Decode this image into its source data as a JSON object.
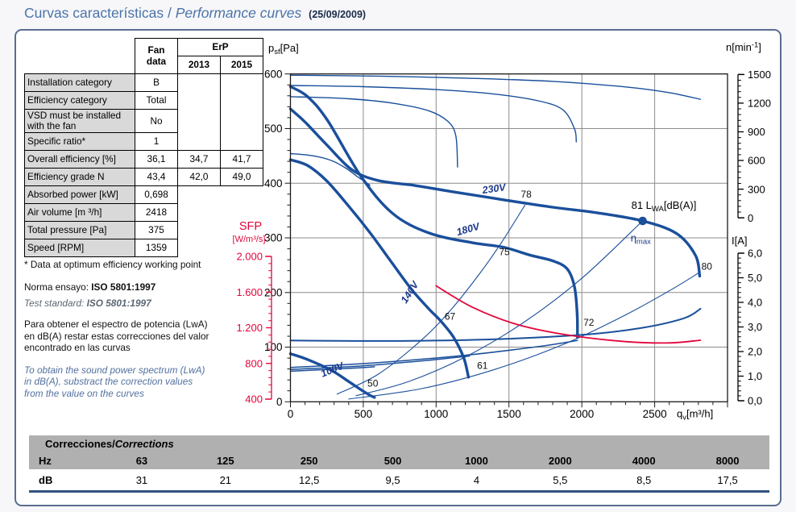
{
  "title": {
    "es": "Curvas características",
    "sep": " / ",
    "en": "Performance curves",
    "date": "(25/09/2009)"
  },
  "fan_table": {
    "headers": {
      "fan_data": "Fan data",
      "erp": "ErP",
      "y2013": "2013",
      "y2015": "2015"
    },
    "rows": [
      {
        "label": "Installation category",
        "fan": "B"
      },
      {
        "label": "Efficiency category",
        "fan": "Total"
      },
      {
        "label": "VSD must be installed with the fan",
        "fan": "No"
      },
      {
        "label": "Specific ratio*",
        "fan": "1"
      },
      {
        "label": "Overall efficiency [%]",
        "fan": "36,1",
        "y2013": "34,7",
        "y2015": "41,7"
      },
      {
        "label": "Efficiency grade N",
        "fan": "43,4",
        "y2013": "42,0",
        "y2015": "49,0"
      },
      {
        "label": "Absorbed power [kW]",
        "fan": "0,698"
      },
      {
        "label": "Air volume [m ³/h]",
        "fan": "2418"
      },
      {
        "label": "Total pressure [Pa]",
        "fan": "375"
      },
      {
        "label": "Speed [RPM]",
        "fan": "1359"
      }
    ]
  },
  "notes": {
    "star": "* Data at optimum efficiency working point",
    "norma_label": "Norma ensayo: ",
    "norma_value": "ISO 5801:1997",
    "test_label": "Test standard: ",
    "test_value": "ISO 5801:1997",
    "para_es": "Para obtener el espectro de potencia (LwA) en dB(A) restar estas correcciones del valor encontrado en las curvas",
    "para_en": "To obtain the sound power spectrum (LwA) in dB(A), substract the correction values from the value on the curves"
  },
  "corrections": {
    "title_es": "Correcciones",
    "sep": " / ",
    "title_en": "Corrections",
    "row_hz": "Hz",
    "row_db": "dB",
    "hz": [
      "63",
      "125",
      "250",
      "500",
      "1000",
      "2000",
      "4000",
      "8000"
    ],
    "db": [
      "31",
      "21",
      "12,5",
      "9,5",
      "4",
      "5,5",
      "8,5",
      "17,5"
    ]
  },
  "chart_data": {
    "type": "line",
    "x_axis": {
      "min": 0,
      "max": 3000,
      "majors": [
        0,
        500,
        1000,
        1500,
        2000,
        2500
      ],
      "labels": [
        "0",
        "500",
        "1000",
        "1500",
        "2000",
        "2500"
      ],
      "minor_step": 100,
      "title_parts": [
        {
          "t": "q"
        },
        {
          "t": "v",
          "sub": true
        },
        {
          "t": "[m³/h]"
        }
      ]
    },
    "psf_axis": {
      "min": 0,
      "max": 600,
      "majors": [
        0,
        100,
        200,
        300,
        400,
        500,
        600
      ],
      "labels": [
        "0",
        "100",
        "200",
        "300",
        "400",
        "500",
        "600"
      ],
      "minor_step": 20,
      "title_parts": [
        {
          "t": "p"
        },
        {
          "t": "sf",
          "sub": true
        },
        {
          "t": "[Pa]"
        }
      ]
    },
    "n_axis": {
      "min": 0,
      "max": 1500,
      "majors": [
        0,
        300,
        600,
        900,
        1200,
        1500
      ],
      "labels": [
        "0",
        "300",
        "600",
        "900",
        "1200",
        "1500"
      ],
      "minor_step": 60,
      "pa_min": 336.7,
      "pa_max": 599,
      "title_parts": [
        {
          "t": "n"
        },
        {
          "t": "[min"
        },
        {
          "t": "-1",
          "sup": true
        },
        {
          "t": "]"
        }
      ]
    },
    "i_axis": {
      "min": 0,
      "max": 6,
      "majors": [
        0,
        1,
        2,
        3,
        4,
        5,
        6
      ],
      "labels": [
        "0,0",
        "1,0",
        "2,0",
        "3,0",
        "4,0",
        "5,0",
        "6,0"
      ],
      "minor_step": 0.2,
      "pa_min": 1.9,
      "pa_max": 272,
      "title_parts": [
        {
          "t": "I[A]"
        }
      ]
    },
    "sfp_axis": {
      "min": 400,
      "max": 2000,
      "majors": [
        400,
        800,
        1200,
        1600,
        2000
      ],
      "labels": [
        "400",
        "800",
        "1.200",
        "1.600",
        "2.000"
      ],
      "minor_step": 80,
      "pa_min": 4.9,
      "pa_max": 266,
      "title": "SFP",
      "unit": "[W/m³/s]"
    },
    "series": [
      {
        "name": "fan-curve-230v",
        "axis": "psf",
        "w": 3.4,
        "pts": [
          [
            0,
            536
          ],
          [
            100,
            512
          ],
          [
            250,
            470
          ],
          [
            420,
            425
          ],
          [
            600,
            405
          ],
          [
            850,
            396
          ],
          [
            1100,
            385
          ],
          [
            1430,
            371
          ],
          [
            1800,
            356
          ],
          [
            2100,
            346
          ],
          [
            2417,
            331
          ],
          [
            2650,
            308
          ],
          [
            2780,
            268
          ],
          [
            2809,
            230
          ]
        ]
      },
      {
        "name": "fan-curve-180v",
        "axis": "psf",
        "w": 3.4,
        "pts": [
          [
            0,
            577
          ],
          [
            120,
            558
          ],
          [
            257,
            514
          ],
          [
            483,
            413
          ],
          [
            700,
            345
          ],
          [
            950,
            309
          ],
          [
            1250,
            291
          ],
          [
            1460,
            283
          ],
          [
            1650,
            268
          ],
          [
            1800,
            258
          ],
          [
            1900,
            243
          ],
          [
            1950,
            210
          ],
          [
            1968,
            160
          ],
          [
            1970,
            118
          ]
        ]
      },
      {
        "name": "fan-curve-140v",
        "axis": "psf",
        "w": 3.4,
        "pts": [
          [
            0,
            443
          ],
          [
            120,
            432
          ],
          [
            250,
            404
          ],
          [
            400,
            358
          ],
          [
            550,
            308
          ],
          [
            700,
            253
          ],
          [
            830,
            206
          ],
          [
            950,
            170
          ],
          [
            1031,
            148
          ],
          [
            1120,
            118
          ],
          [
            1190,
            80
          ],
          [
            1222,
            45
          ]
        ]
      },
      {
        "name": "fan-curve-100v",
        "axis": "psf",
        "w": 3.4,
        "pts": [
          [
            0,
            88
          ],
          [
            120,
            77
          ],
          [
            285,
            57
          ],
          [
            400,
            37
          ],
          [
            490,
            21
          ],
          [
            545,
            12
          ],
          [
            577,
            8
          ]
        ]
      },
      {
        "name": "speed-curve-230v",
        "axis": "n",
        "w": 1.4,
        "pts": [
          [
            0,
            1492
          ],
          [
            600,
            1483
          ],
          [
            1200,
            1462
          ],
          [
            1800,
            1428
          ],
          [
            2300,
            1370
          ],
          [
            2600,
            1310
          ],
          [
            2815,
            1240
          ]
        ]
      },
      {
        "name": "speed-curve-180v",
        "axis": "n",
        "w": 1.4,
        "pts": [
          [
            0,
            1385
          ],
          [
            500,
            1372
          ],
          [
            1000,
            1342
          ],
          [
            1400,
            1295
          ],
          [
            1700,
            1225
          ],
          [
            1870,
            1130
          ],
          [
            1950,
            930
          ],
          [
            1962,
            795
          ]
        ]
      },
      {
        "name": "speed-curve-140v",
        "axis": "n",
        "w": 1.4,
        "pts": [
          [
            0,
            1268
          ],
          [
            400,
            1246
          ],
          [
            700,
            1200
          ],
          [
            950,
            1120
          ],
          [
            1080,
            1010
          ],
          [
            1135,
            860
          ],
          [
            1147,
            531
          ]
        ]
      },
      {
        "name": "speed-curve-100v",
        "axis": "n",
        "w": 1.4,
        "pts": [
          [
            0,
            672
          ],
          [
            150,
            650
          ],
          [
            280,
            600
          ],
          [
            380,
            520
          ],
          [
            460,
            430
          ],
          [
            520,
            370
          ],
          [
            545,
            340
          ]
        ]
      },
      {
        "name": "current-curve-230v",
        "axis": "i",
        "w": 2.0,
        "pts": [
          [
            0,
            2.45
          ],
          [
            700,
            2.43
          ],
          [
            1400,
            2.5
          ],
          [
            2000,
            2.68
          ],
          [
            2400,
            2.95
          ],
          [
            2700,
            3.35
          ],
          [
            2815,
            3.74
          ]
        ]
      },
      {
        "name": "current-curve-180v",
        "axis": "i",
        "w": 1.5,
        "pts": [
          [
            0,
            1.35
          ],
          [
            600,
            1.55
          ],
          [
            1200,
            1.85
          ],
          [
            1700,
            2.2
          ],
          [
            1970,
            2.45
          ]
        ]
      },
      {
        "name": "current-curve-140v",
        "axis": "i",
        "w": 1.5,
        "pts": [
          [
            0,
            1.27
          ],
          [
            500,
            1.42
          ],
          [
            900,
            1.62
          ],
          [
            1229,
            1.82
          ]
        ]
      },
      {
        "name": "current-curve-100v",
        "axis": "i",
        "w": 1.5,
        "pts": [
          [
            0,
            1.2
          ],
          [
            250,
            1.27
          ],
          [
            450,
            1.33
          ],
          [
            577,
            1.38
          ]
        ]
      },
      {
        "name": "lwa-parabola",
        "axis": "psf",
        "w": 1.1,
        "pts": [
          [
            320,
            14
          ],
          [
            600,
            50
          ],
          [
            900,
            113
          ],
          [
            1100,
            168
          ],
          [
            1300,
            235
          ],
          [
            1450,
            292
          ],
          [
            1610,
            360
          ]
        ]
      },
      {
        "name": "eta-max-parabola",
        "axis": "psf",
        "w": 1.1,
        "pts": [
          [
            450,
            11
          ],
          [
            800,
            36
          ],
          [
            1200,
            82
          ],
          [
            1600,
            145
          ],
          [
            2000,
            226
          ],
          [
            2417,
            331
          ]
        ]
      },
      {
        "name": "max-flow-parabola",
        "axis": "psf",
        "w": 1.1,
        "pts": [
          [
            400,
            5
          ],
          [
            900,
            24
          ],
          [
            1400,
            59
          ],
          [
            1900,
            108
          ],
          [
            2300,
            159
          ],
          [
            2600,
            203
          ],
          [
            2809,
            237
          ]
        ]
      },
      {
        "name": "sfp-curve",
        "axis": "sfp",
        "w": 1.8,
        "color": "#e2063c",
        "pts": [
          [
            1000,
            1670
          ],
          [
            1250,
            1430
          ],
          [
            1550,
            1240
          ],
          [
            1900,
            1120
          ],
          [
            2300,
            1045
          ],
          [
            2600,
            1030
          ],
          [
            2815,
            1060
          ]
        ]
      }
    ],
    "labels": [
      {
        "t": "230V",
        "x": 1400,
        "pa": 384,
        "rot": -8,
        "cls": "v"
      },
      {
        "t": "78",
        "x": 1618,
        "pa": 374,
        "cls": "n"
      },
      {
        "t": "180V",
        "x": 1225,
        "pa": 310,
        "rot": -16,
        "cls": "v"
      },
      {
        "t": "75",
        "x": 1468,
        "pa": 268,
        "cls": "n"
      },
      {
        "t": "140V",
        "x": 838,
        "pa": 197,
        "rot": -57,
        "cls": "v"
      },
      {
        "t": "67",
        "x": 1095,
        "pa": 150,
        "cls": "n"
      },
      {
        "t": "100V",
        "x": 295,
        "pa": 53,
        "rot": -22,
        "cls": "v"
      },
      {
        "t": "50",
        "x": 565,
        "pa": 28,
        "cls": "n"
      },
      {
        "t": "61",
        "x": 1318,
        "pa": 60,
        "cls": "n"
      },
      {
        "t": "72",
        "x": 2048,
        "pa": 139,
        "cls": "n"
      },
      {
        "t": "80",
        "x": 2858,
        "pa": 242,
        "cls": "n"
      }
    ],
    "optimum_point": {
      "qv": 2417,
      "psf": 331
    },
    "lwa_point_label": {
      "parts": [
        {
          "t": "81 L"
        },
        {
          "t": "WA",
          "sub": true
        },
        {
          "t": "[dB(A)]"
        }
      ]
    },
    "eta_label": {
      "parts": [
        {
          "t": "η"
        },
        {
          "t": "max",
          "sub": true
        }
      ]
    },
    "colors": {
      "blue": "#1a4f9b",
      "navy_label": "#1e3a8c",
      "red": "#e2063c",
      "grid": "#8c8c8c",
      "black": "#111111"
    }
  }
}
